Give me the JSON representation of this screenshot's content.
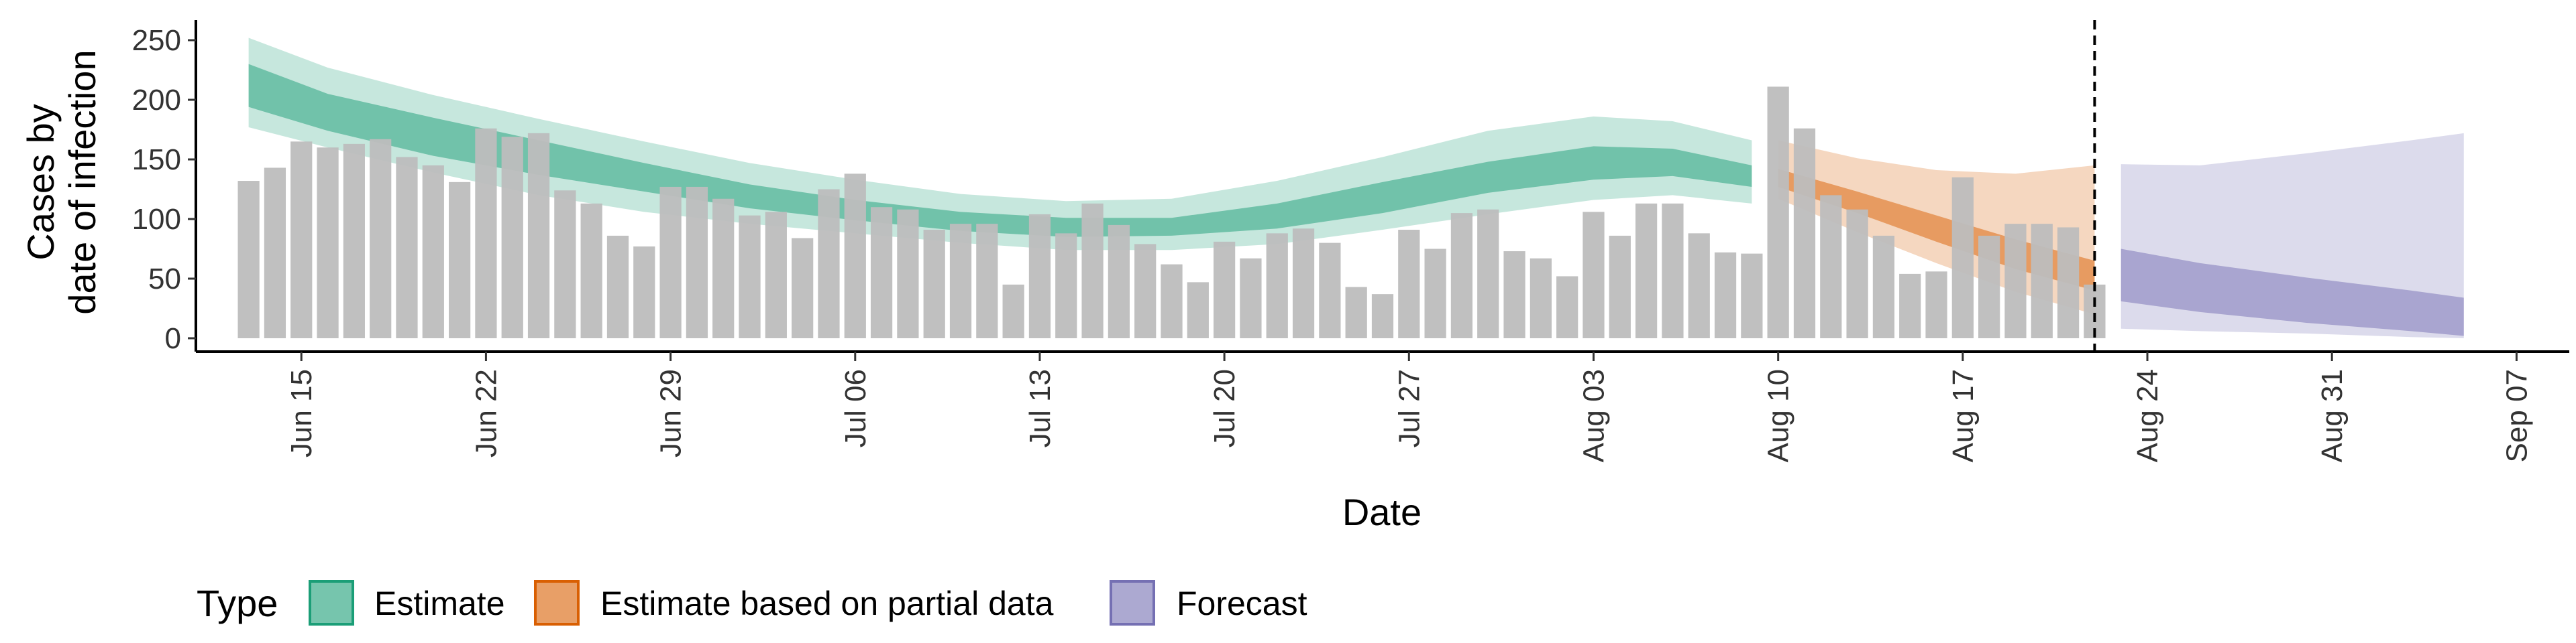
{
  "chart_data": {
    "type": "bar",
    "xlabel": "Date",
    "ylabel": [
      "Cases by",
      "date of infection"
    ],
    "ylim": [
      0,
      260
    ],
    "y_ticks": [
      0,
      50,
      100,
      150,
      200,
      250
    ],
    "x_range": [
      "2020-06-11",
      "2020-09-09"
    ],
    "x_ticks": [
      {
        "date": "2020-06-15",
        "label": "Jun 15"
      },
      {
        "date": "2020-06-22",
        "label": "Jun 22"
      },
      {
        "date": "2020-06-29",
        "label": "Jun 29"
      },
      {
        "date": "2020-07-06",
        "label": "Jul 06"
      },
      {
        "date": "2020-07-13",
        "label": "Jul 13"
      },
      {
        "date": "2020-07-20",
        "label": "Jul 20"
      },
      {
        "date": "2020-07-27",
        "label": "Jul 27"
      },
      {
        "date": "2020-08-03",
        "label": "Aug 03"
      },
      {
        "date": "2020-08-10",
        "label": "Aug 10"
      },
      {
        "date": "2020-08-17",
        "label": "Aug 17"
      },
      {
        "date": "2020-08-24",
        "label": "Aug 24"
      },
      {
        "date": "2020-08-31",
        "label": "Aug 31"
      },
      {
        "date": "2020-09-07",
        "label": "Sep 07"
      }
    ],
    "grid": false,
    "bars": {
      "start_date": "2020-06-13",
      "color": "#bdbdbd",
      "values": [
        132,
        143,
        165,
        160,
        163,
        167,
        152,
        145,
        131,
        176,
        169,
        172,
        124,
        113,
        86,
        77,
        127,
        127,
        117,
        103,
        106,
        84,
        125,
        138,
        110,
        108,
        91,
        96,
        96,
        45,
        104,
        88,
        113,
        95,
        79,
        62,
        47,
        81,
        67,
        88,
        92,
        80,
        43,
        37,
        91,
        75,
        105,
        108,
        73,
        67,
        52,
        106,
        86,
        113,
        113,
        88,
        72,
        71,
        211,
        176,
        120,
        108,
        86,
        54,
        56,
        135,
        86,
        96,
        96,
        93,
        45
      ]
    },
    "vline": {
      "date": "2020-08-22",
      "style": "dashed"
    },
    "series": [
      {
        "name": "Estimate",
        "color": "#1b9e77",
        "x": [
          "2020-06-13",
          "2020-06-16",
          "2020-06-20",
          "2020-06-24",
          "2020-06-28",
          "2020-07-02",
          "2020-07-06",
          "2020-07-10",
          "2020-07-14",
          "2020-07-18",
          "2020-07-22",
          "2020-07-26",
          "2020-07-30",
          "2020-08-03",
          "2020-08-06",
          "2020-08-09"
        ],
        "outer_lower": [
          177,
          160,
          139,
          120,
          106,
          96,
          88,
          80,
          74,
          74,
          79,
          91,
          104,
          116,
          120,
          113
        ],
        "inner_lower": [
          194,
          174,
          153,
          137,
          123,
          109,
          99,
          90,
          85,
          86,
          92,
          105,
          122,
          133,
          136,
          127
        ],
        "inner_upper": [
          230,
          205,
          185,
          166,
          147,
          129,
          116,
          106,
          101,
          101,
          113,
          131,
          148,
          161,
          159,
          145
        ],
        "outer_upper": [
          252,
          227,
          204,
          184,
          165,
          147,
          133,
          121,
          115,
          117,
          132,
          152,
          174,
          186,
          182,
          166
        ]
      },
      {
        "name": "Estimate based on partial data",
        "color": "#d95f02",
        "x": [
          "2020-08-10",
          "2020-08-13",
          "2020-08-16",
          "2020-08-19",
          "2020-08-22"
        ],
        "outer_lower": [
          117,
          89,
          63,
          39,
          20
        ],
        "inner_lower": [
          127,
          105,
          81,
          58,
          40
        ],
        "inner_upper": [
          142,
          123,
          103,
          83,
          65
        ],
        "outer_upper": [
          166,
          151,
          141,
          138,
          145
        ]
      },
      {
        "name": "Forecast",
        "color": "#7570b3",
        "x": [
          "2020-08-23",
          "2020-08-26",
          "2020-08-30",
          "2020-09-03",
          "2020-09-05"
        ],
        "outer_lower": [
          8,
          6,
          4,
          1,
          0
        ],
        "inner_lower": [
          31,
          22,
          13,
          6,
          2
        ],
        "inner_upper": [
          75,
          63,
          51,
          40,
          34
        ],
        "outer_upper": [
          146,
          145,
          155,
          166,
          172
        ]
      }
    ],
    "legend": {
      "title": "Type",
      "position": "bottom",
      "items": [
        "Estimate",
        "Estimate based on partial data",
        "Forecast"
      ]
    }
  }
}
